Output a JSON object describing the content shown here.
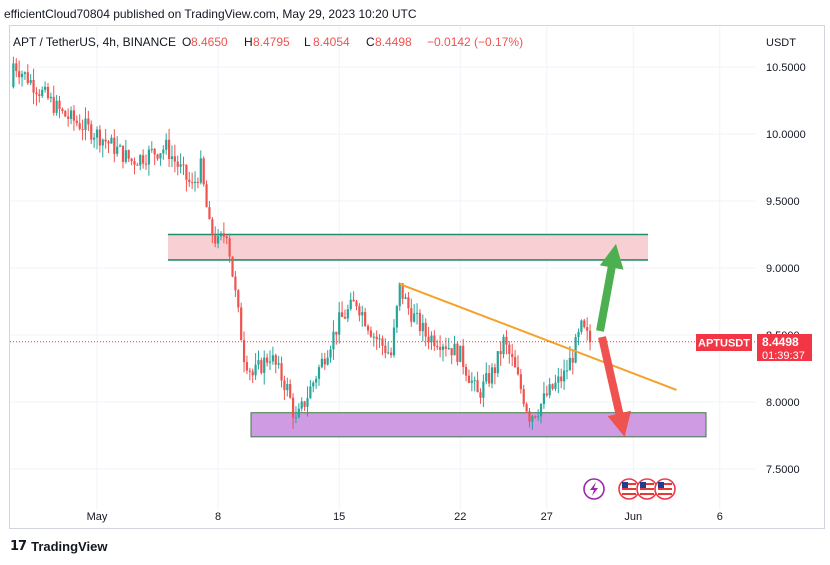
{
  "header": {
    "published_line": "efficientCloud70804 published on TradingView.com, May 29, 2023 10:20 UTC"
  },
  "legend": {
    "symbol": "APT / TetherUS, 4h, BINANCE",
    "o_label": "O",
    "o_value": "8.4650",
    "h_label": "H",
    "h_value": "8.4795",
    "l_label": "L",
    "l_value": "8.4054",
    "c_label": "C",
    "c_value": "8.4498",
    "change": "−0.0142 (−0.17%)"
  },
  "price_axis": {
    "currency": "USDT",
    "ticks": [
      "10.5000",
      "10.0000",
      "9.5000",
      "9.0000",
      "8.5000",
      "8.0000",
      "7.5000"
    ],
    "current_label": "APTUSDT",
    "current_price": "8.4498",
    "countdown": "01:39:37"
  },
  "colors": {
    "up": "#26a69a",
    "down": "#ef5350",
    "resistance_fill": "#f8d0d4",
    "resistance_border": "#1f8f6f",
    "support_fill": "#cf9be3",
    "support_border": "#3e7a46",
    "trendline": "#f4a22a",
    "arrow_up": "#4caf50",
    "arrow_down": "#ef5350",
    "current_price": "#f23645"
  },
  "chart_data": {
    "type": "candlestick",
    "symbol": "APT / TetherUS",
    "interval": "4h",
    "exchange": "BINANCE",
    "x_labels": [
      "May",
      "8",
      "15",
      "22",
      "27",
      "Jun",
      "6"
    ],
    "y_range": [
      7.0,
      11.2
    ],
    "last_close": 8.4498,
    "price_path": [
      [
        -12,
        10.35
      ],
      [
        -9,
        10.55
      ],
      [
        -7,
        10.78
      ],
      [
        -5,
        10.55
      ],
      [
        -2,
        10.15
      ],
      [
        0,
        10.0
      ],
      [
        2,
        9.8
      ],
      [
        4,
        9.9
      ],
      [
        5.5,
        9.6
      ],
      [
        6,
        9.75
      ],
      [
        6.5,
        9.3
      ],
      [
        7,
        9.18
      ],
      [
        7.5,
        9.28
      ],
      [
        8,
        8.8
      ],
      [
        8.5,
        8.35
      ],
      [
        9,
        8.2
      ],
      [
        10,
        8.35
      ],
      [
        11,
        8.1
      ],
      [
        11.5,
        7.85
      ],
      [
        12,
        8.0
      ],
      [
        13,
        8.3
      ],
      [
        14,
        8.6
      ],
      [
        15,
        8.75
      ],
      [
        16,
        8.5
      ],
      [
        17,
        8.35
      ],
      [
        17.5,
        8.85
      ],
      [
        18,
        8.7
      ],
      [
        19,
        8.5
      ],
      [
        20,
        8.45
      ],
      [
        21,
        8.35
      ],
      [
        22,
        8.05
      ],
      [
        23,
        8.25
      ],
      [
        23.5,
        8.45
      ],
      [
        24,
        8.3
      ],
      [
        25,
        7.9
      ],
      [
        25.5,
        7.95
      ],
      [
        26,
        8.05
      ],
      [
        27,
        8.2
      ],
      [
        27.5,
        8.35
      ],
      [
        28,
        8.55
      ],
      [
        28.5,
        8.45
      ]
    ],
    "annotations": {
      "resistance_zone": [
        9.06,
        9.25
      ],
      "support_zone": [
        7.74,
        7.92
      ],
      "trendline": [
        [
          17.5,
          8.88
        ],
        [
          33.5,
          8.09
        ]
      ],
      "arrow_up_to": [
        30.0,
        9.18
      ],
      "arrow_down_to": [
        30.5,
        7.74
      ]
    }
  },
  "footer": {
    "brand": "TradingView"
  }
}
